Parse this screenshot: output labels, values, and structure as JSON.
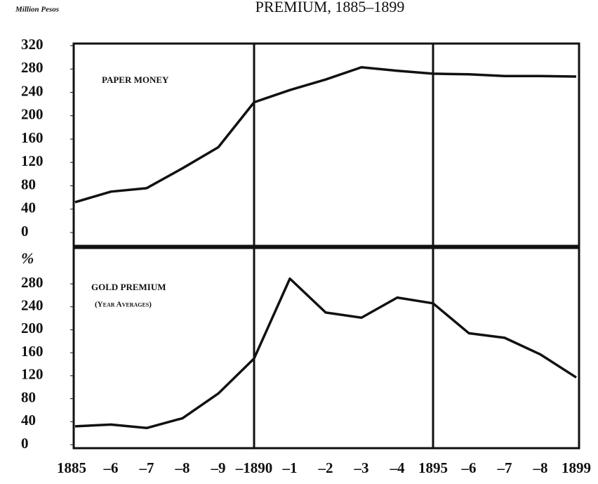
{
  "chart_data": [
    {
      "type": "line",
      "title": "PREMIUM, 1885–1899",
      "y_label": "Million Pesos",
      "annotation": "PAPER MONEY",
      "color": "#111111",
      "values": [
        52,
        70,
        76,
        110,
        146,
        223,
        244,
        262,
        283,
        277,
        272,
        271,
        268,
        268,
        267
      ],
      "ylim": [
        0,
        320
      ],
      "yticks": [
        0,
        40,
        80,
        120,
        160,
        200,
        240,
        280,
        320
      ]
    },
    {
      "type": "line",
      "y_label": "%",
      "annotation": "GOLD PREMIUM",
      "subannotation": "(Year Averages)",
      "color": "#111111",
      "categories": [
        "1885",
        "–6",
        "–7",
        "–8",
        "–9",
        "–1890",
        "–1",
        "–2",
        "–3",
        "–4",
        "1895",
        "–6",
        "–7",
        "–8",
        "1899"
      ],
      "values": [
        32,
        35,
        29,
        46,
        89,
        150,
        289,
        230,
        221,
        256,
        246,
        194,
        186,
        157,
        117
      ],
      "ylim": [
        0,
        280
      ],
      "yticks": [
        0,
        40,
        80,
        120,
        160,
        200,
        240,
        280
      ]
    }
  ]
}
